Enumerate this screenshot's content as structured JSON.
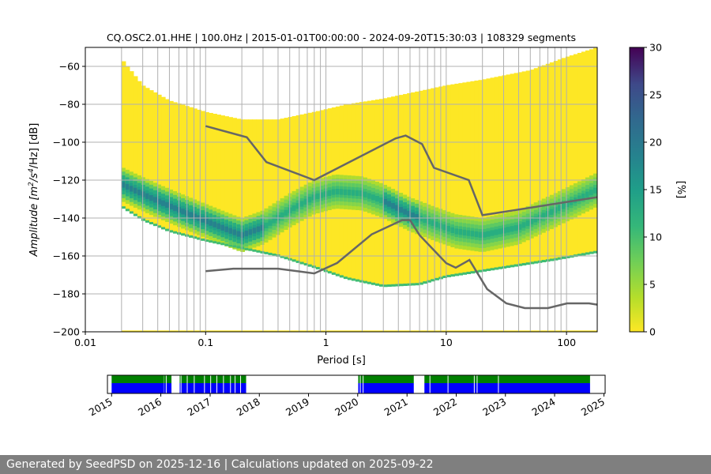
{
  "chart_data": [
    {
      "type": "heatmap",
      "subtype": "probabilistic power spectral density",
      "title": "CQ.OSC2.01.HHE | 100.0Hz | 2015-01-01T00:00:00 - 2024-09-20T15:30:03 | 108329 segments",
      "xlabel": "Period [s]",
      "ylabel_parts": [
        "Amplitude [m",
        "2",
        "/s",
        "4",
        "/Hz] [dB]"
      ],
      "x_scale": "log",
      "xlim": [
        0.01,
        180
      ],
      "ylim": [
        -200,
        -50
      ],
      "x_ticks": [
        {
          "value": 0.01,
          "label": "0.01"
        },
        {
          "value": 0.1,
          "label": "0.1"
        },
        {
          "value": 1,
          "label": "1"
        },
        {
          "value": 10,
          "label": "10"
        },
        {
          "value": 100,
          "label": "100"
        }
      ],
      "y_ticks": [
        {
          "value": -60,
          "label": "−60"
        },
        {
          "value": -80,
          "label": "−80"
        },
        {
          "value": -100,
          "label": "−100"
        },
        {
          "value": -120,
          "label": "−120"
        },
        {
          "value": -140,
          "label": "−140"
        },
        {
          "value": -160,
          "label": "−160"
        },
        {
          "value": -180,
          "label": "−180"
        },
        {
          "value": -200,
          "label": "−200"
        }
      ],
      "grid": true,
      "period_gridlines": [
        0.02,
        0.03,
        0.04,
        0.05,
        0.06,
        0.07,
        0.08,
        0.09,
        0.1,
        0.2,
        0.3,
        0.4,
        0.5,
        0.6,
        0.7,
        0.8,
        0.9,
        1,
        2,
        3,
        4,
        5,
        6,
        7,
        8,
        9,
        10,
        20,
        30,
        40,
        50,
        60,
        70,
        80,
        90,
        100
      ],
      "colormap": "viridis_r",
      "colors": {
        "low": "#fde725",
        "mid": "#21918c",
        "high": "#440154",
        "reference_curves": "#666666",
        "grid": "#b0b0b0"
      },
      "colorbar": {
        "label": "[%]",
        "min": 0,
        "max": 30,
        "ticks": [
          0,
          5,
          10,
          15,
          20,
          25,
          30
        ]
      },
      "ppsd_mode": {
        "name": "mode",
        "period": [
          0.02,
          0.025,
          0.04,
          0.08,
          0.15,
          0.2,
          0.3,
          0.5,
          0.8,
          1.2,
          2,
          3,
          4,
          5,
          6,
          8,
          12,
          20,
          40,
          80,
          180
        ],
        "amplitude": [
          -122,
          -125,
          -131,
          -139,
          -146,
          -149,
          -145,
          -136,
          -129,
          -126,
          -127,
          -131,
          -135,
          -138,
          -140,
          -143,
          -147,
          -149,
          -145,
          -136,
          -125
        ]
      },
      "ppsd_upper_envelope": {
        "period": [
          0.02,
          0.03,
          0.05,
          0.1,
          0.2,
          0.4,
          0.8,
          1.5,
          3,
          6,
          10,
          20,
          50,
          100,
          180
        ],
        "amplitude": [
          -56,
          -70,
          -78,
          -84,
          -88,
          -88,
          -84,
          -80,
          -77,
          -73,
          -70,
          -67,
          -62,
          -55,
          -50
        ]
      },
      "ppsd_lower_envelope": {
        "period": [
          0.02,
          0.03,
          0.05,
          0.1,
          0.2,
          0.4,
          0.8,
          1.5,
          3,
          6,
          10,
          20,
          40,
          80,
          180
        ],
        "amplitude": [
          -134,
          -141,
          -147,
          -152,
          -156,
          -160,
          -166,
          -172,
          -176,
          -175,
          -171,
          -168,
          -165,
          -162,
          -158
        ]
      },
      "high_noise_model": {
        "name": "NHNM",
        "period": [
          0.1,
          0.22,
          0.32,
          0.8,
          3.8,
          4.6,
          6.3,
          7.9,
          15.4,
          20,
          180
        ],
        "amplitude": [
          -91.5,
          -97.4,
          -110.5,
          -120,
          -98,
          -96.5,
          -101,
          -113.5,
          -120,
          -138.5,
          -129
        ]
      },
      "low_noise_model": {
        "name": "NLNM",
        "period": [
          0.1,
          0.17,
          0.4,
          0.8,
          1.24,
          2.4,
          4.3,
          5,
          6,
          10,
          12,
          15.6,
          21.9,
          31.6,
          45,
          70,
          101,
          154,
          180
        ],
        "amplitude": [
          -168,
          -166.7,
          -166.7,
          -169.2,
          -163.7,
          -148.6,
          -141.1,
          -141.1,
          -149,
          -163.8,
          -166.2,
          -162.1,
          -177.5,
          -185,
          -187.5,
          -187.5,
          -185,
          -185,
          -185.7
        ]
      }
    },
    {
      "type": "timeline",
      "subtype": "data coverage",
      "x_ticks": [
        "2015",
        "2016",
        "2017",
        "2018",
        "2019",
        "2020",
        "2021",
        "2022",
        "2023",
        "2024",
        "2025"
      ],
      "x_range": [
        "2014-12-01",
        "2025-01-10"
      ],
      "colors": {
        "ppsd_used": "#0000ff",
        "data_available": "#008000"
      },
      "coverage_spans": [
        [
          "2015-01-01",
          "2016-01-25"
        ],
        [
          "2016-01-27",
          "2016-03-20"
        ],
        [
          "2016-05-20",
          "2017-09-25"
        ],
        [
          "2020-01-05",
          "2021-02-20"
        ],
        [
          "2021-05-10",
          "2024-09-20"
        ]
      ],
      "gap_lines": [
        "2016-02-10",
        "2016-05-30",
        "2016-07-15",
        "2016-09-05",
        "2016-11-20",
        "2017-01-05",
        "2017-02-20",
        "2017-04-10",
        "2017-06-01",
        "2017-07-05",
        "2017-08-15",
        "2020-01-20",
        "2020-02-10",
        "2021-06-20",
        "2021-11-01",
        "2022-05-15",
        "2022-06-05",
        "2022-11-10"
      ]
    }
  ],
  "footer": {
    "text": "Generated by SeedPSD on 2025-12-16 | Calculations updated on 2025-09-22"
  }
}
